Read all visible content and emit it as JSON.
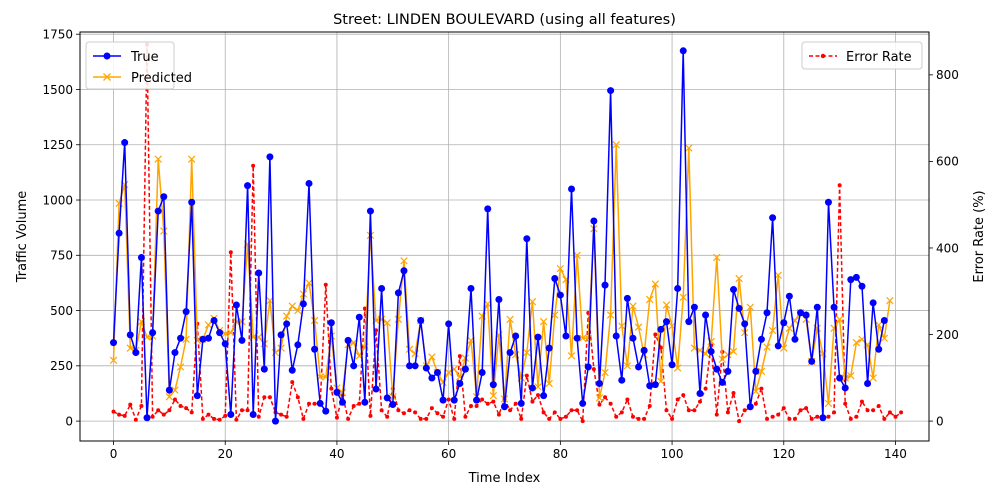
{
  "chart_data": {
    "type": "line",
    "title": "Street: LINDEN BOULEVARD (using all features)",
    "xlabel": "Time Index",
    "ylabel": "Traffic Volume",
    "y2label": "Error Rate (%)",
    "xlim": [
      -6,
      146
    ],
    "ylim": [
      -90,
      1760
    ],
    "y2lim": [
      -46,
      899
    ],
    "xticks": [
      0,
      20,
      40,
      60,
      80,
      100,
      120,
      140
    ],
    "yticks": [
      0,
      250,
      500,
      750,
      1000,
      1250,
      1500,
      1750
    ],
    "y2ticks": [
      0,
      200,
      400,
      600,
      800
    ],
    "grid": true,
    "legend_left_placement": "top-left",
    "legend_right_placement": "top-right",
    "colors": {
      "true": "#0000ff",
      "predicted": "#ffa500",
      "error": "#ff0000"
    },
    "series": [
      {
        "name": "True",
        "axis": "left",
        "style": "solid",
        "marker": "circle",
        "values": [
          355,
          850,
          1260,
          390,
          310,
          740,
          15,
          400,
          950,
          1015,
          140,
          310,
          375,
          495,
          990,
          115,
          370,
          375,
          455,
          400,
          350,
          30,
          525,
          365,
          1065,
          30,
          670,
          235,
          1195,
          0,
          390,
          440,
          230,
          345,
          530,
          1075,
          325,
          80,
          45,
          445,
          130,
          85,
          365,
          250,
          470,
          85,
          950,
          145,
          600,
          105,
          75,
          580,
          680,
          250,
          250,
          455,
          240,
          195,
          220,
          95,
          440,
          95,
          170,
          235,
          600,
          95,
          220,
          960,
          165,
          550,
          65,
          310,
          385,
          80,
          825,
          150,
          380,
          115,
          330,
          645,
          570,
          385,
          1050,
          375,
          80,
          245,
          905,
          170,
          615,
          1495,
          385,
          185,
          555,
          375,
          245,
          320,
          160,
          165,
          415,
          450,
          255,
          600,
          1675,
          450,
          515,
          125,
          480,
          315,
          235,
          175,
          225,
          595,
          510,
          440,
          65,
          225,
          370,
          490,
          920,
          340,
          445,
          565,
          370,
          490,
          480,
          270,
          515,
          15,
          990,
          515,
          195,
          150,
          640,
          650,
          610,
          170,
          535,
          325,
          455
        ]
      },
      {
        "name": "Predicted",
        "axis": "left",
        "style": "solid",
        "marker": "x",
        "values": [
          275,
          985,
          1070,
          330,
          320,
          450,
          380,
          385,
          1185,
          860,
          110,
          140,
          245,
          370,
          1185,
          365,
          370,
          435,
          465,
          410,
          395,
          400,
          450,
          450,
          800,
          380,
          380,
          350,
          545,
          310,
          330,
          475,
          520,
          500,
          575,
          625,
          455,
          200,
          200,
          385,
          150,
          130,
          345,
          355,
          295,
          335,
          840,
          455,
          460,
          445,
          110,
          460,
          725,
          325,
          305,
          455,
          250,
          290,
          220,
          175,
          220,
          235,
          200,
          285,
          365,
          110,
          475,
          530,
          115,
          390,
          100,
          460,
          300,
          195,
          310,
          540,
          155,
          450,
          170,
          480,
          690,
          640,
          295,
          750,
          375,
          375,
          870,
          105,
          220,
          480,
          1250,
          430,
          250,
          520,
          425,
          300,
          550,
          620,
          180,
          525,
          430,
          240,
          560,
          1235,
          330,
          320,
          305,
          360,
          740,
          280,
          300,
          315,
          645,
          400,
          515,
          135,
          225,
          335,
          410,
          660,
          330,
          420,
          455,
          490,
          460,
          270,
          420,
          305,
          80,
          420,
          460,
          195,
          205,
          355,
          370,
          345,
          195,
          435,
          375,
          545
        ]
      },
      {
        "name": "Error Rate",
        "axis": "right",
        "style": "dashed",
        "marker": "dot",
        "values": [
          22,
          15,
          12,
          38,
          3,
          35,
          870,
          10,
          25,
          15,
          25,
          50,
          35,
          30,
          20,
          225,
          5,
          15,
          5,
          3,
          12,
          390,
          3,
          25,
          25,
          590,
          10,
          55,
          55,
          20,
          15,
          10,
          90,
          55,
          5,
          40,
          40,
          40,
          315,
          75,
          8,
          60,
          5,
          35,
          40,
          260,
          12,
          210,
          25,
          10,
          75,
          25,
          18,
          25,
          20,
          5,
          5,
          30,
          18,
          10,
          50,
          5,
          150,
          10,
          35,
          35,
          50,
          40,
          45,
          15,
          50,
          25,
          40,
          5,
          105,
          45,
          60,
          20,
          5,
          20,
          5,
          10,
          25,
          25,
          0,
          250,
          120,
          38,
          55,
          40,
          10,
          20,
          50,
          10,
          5,
          5,
          35,
          200,
          170,
          25,
          5,
          50,
          60,
          25,
          25,
          45,
          75,
          175,
          15,
          160,
          20,
          65,
          0,
          25,
          30,
          40,
          75,
          5,
          10,
          15,
          30,
          5,
          5,
          25,
          30,
          5,
          10,
          10,
          10,
          20,
          545,
          40,
          5,
          10,
          45,
          25,
          25,
          35,
          5,
          20,
          10,
          20
        ]
      }
    ]
  }
}
